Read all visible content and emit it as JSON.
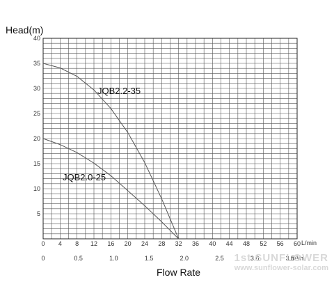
{
  "chart_data": {
    "type": "line",
    "ylabel": "Head(m)",
    "xlabel": "Flow Rate",
    "y_ticks": [
      "5",
      "10",
      "15",
      "20",
      "25",
      "30",
      "35",
      "40"
    ],
    "ylim": [
      0,
      40
    ],
    "x_ticks_lmin": [
      "0",
      "4",
      "8",
      "12",
      "16",
      "20",
      "24",
      "28",
      "32",
      "36",
      "40",
      "44",
      "48",
      "52",
      "56",
      "60"
    ],
    "x_unit_lmin": "L/min",
    "xlim_lmin": [
      0,
      60
    ],
    "x_ticks_m3h": [
      "0",
      "0.5",
      "1.0",
      "1.5",
      "2.0",
      "2.5",
      "3.0",
      "3.5"
    ],
    "x_unit_m3h": "m³/h",
    "grid": true,
    "series": [
      {
        "name": "JQB2.2-35",
        "x": [
          0,
          4,
          8,
          12,
          16,
          20,
          24,
          28,
          30,
          32
        ],
        "y": [
          35,
          34.1,
          32.4,
          29.7,
          26,
          21.2,
          15.2,
          8,
          4,
          0
        ]
      },
      {
        "name": "JQB2.0-25",
        "x": [
          0,
          4,
          8,
          12,
          16,
          20,
          24,
          28,
          30,
          32
        ],
        "y": [
          20,
          18.8,
          17.2,
          15.1,
          12.6,
          9.6,
          6.6,
          3.4,
          1.7,
          0
        ]
      }
    ]
  },
  "watermark": {
    "brand": "1st SUNFLOWER",
    "url": "www.sunflower-solar.com"
  }
}
